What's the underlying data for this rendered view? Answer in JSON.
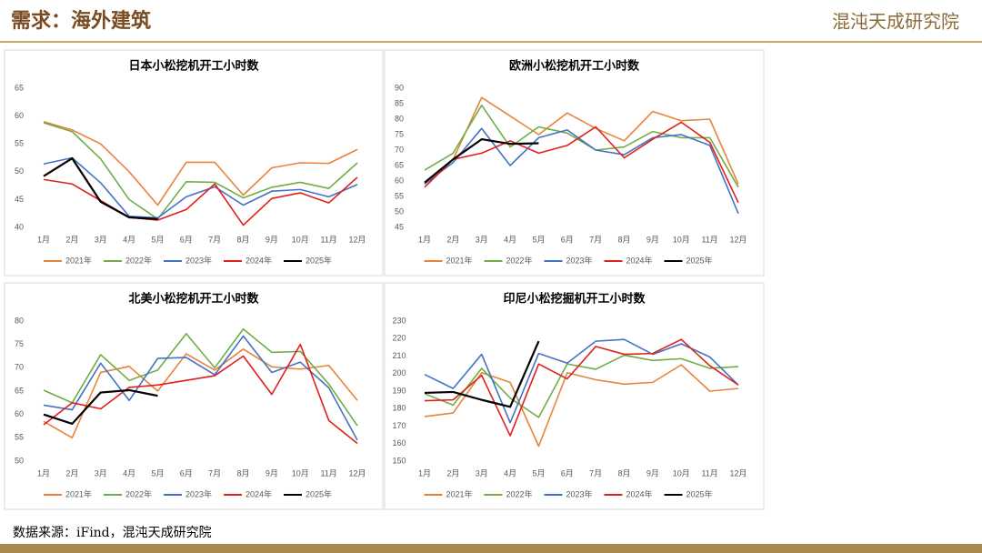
{
  "page_title": "需求：海外建筑",
  "logo": "混沌天成研究院",
  "source": "数据来源：iFind，混沌天成研究院",
  "chart_data": [
    {
      "type": "line",
      "title": "日本小松挖机开工小时数",
      "categories": [
        "1月",
        "2月",
        "3月",
        "4月",
        "5月",
        "6月",
        "7月",
        "8月",
        "9月",
        "10月",
        "11月",
        "12月"
      ],
      "ylim": [
        40,
        65
      ],
      "yticks": [
        40,
        45,
        50,
        55,
        60,
        65
      ],
      "series": [
        {
          "name": "2021年",
          "color": "#e8833a",
          "values": [
            59,
            57.5,
            55,
            50,
            44,
            51.7,
            51.7,
            45.8,
            50.7,
            51.6,
            51.5,
            54
          ]
        },
        {
          "name": "2022年",
          "color": "#70ad47",
          "values": [
            58.8,
            57.2,
            52.3,
            45,
            41.5,
            48.2,
            48.1,
            45.3,
            47.2,
            48.1,
            47,
            51.6
          ]
        },
        {
          "name": "2023年",
          "color": "#4472c4",
          "values": [
            51.4,
            52.5,
            48,
            42,
            41.7,
            45.5,
            47.3,
            44,
            46.5,
            46.8,
            45.5,
            47.7
          ]
        },
        {
          "name": "2024年",
          "color": "#e0201b",
          "values": [
            48.6,
            47.8,
            44.8,
            41.8,
            41.3,
            43.2,
            47.8,
            40.4,
            45.2,
            46.2,
            44.4,
            49
          ]
        },
        {
          "name": "2025年",
          "color": "#000000",
          "values": [
            49.2,
            52.4,
            44.6,
            41.8,
            41.5,
            null,
            null,
            null,
            null,
            null,
            null,
            null
          ]
        }
      ]
    },
    {
      "type": "line",
      "title": "欧洲小松挖机开工小时数",
      "categories": [
        "1月",
        "2月",
        "3月",
        "4月",
        "5月",
        "6月",
        "7月",
        "8月",
        "9月",
        "10月",
        "11月",
        "12月"
      ],
      "ylim": [
        45,
        90
      ],
      "yticks": [
        45,
        50,
        55,
        60,
        65,
        70,
        75,
        80,
        85,
        90
      ],
      "series": [
        {
          "name": "2021年",
          "color": "#e8833a",
          "values": [
            59.5,
            67,
            87,
            81,
            75,
            82,
            77,
            73,
            82.5,
            79.5,
            80,
            59
          ]
        },
        {
          "name": "2022年",
          "color": "#70ad47",
          "values": [
            63.5,
            69,
            84.5,
            71,
            77.5,
            75.5,
            70,
            71,
            76,
            74,
            74,
            58
          ]
        },
        {
          "name": "2023年",
          "color": "#4472c4",
          "values": [
            59,
            66,
            77,
            65,
            74,
            76.5,
            70,
            68.5,
            74,
            75,
            71.5,
            49.5
          ]
        },
        {
          "name": "2024年",
          "color": "#e0201b",
          "values": [
            58,
            67,
            69,
            73,
            69,
            71.5,
            77.5,
            67.5,
            73.5,
            79,
            72.5,
            53
          ]
        },
        {
          "name": "2025年",
          "color": "#000000",
          "values": [
            59.5,
            67,
            73.5,
            72,
            72.2,
            null,
            null,
            null,
            null,
            null,
            null,
            null
          ]
        }
      ]
    },
    {
      "type": "line",
      "title": "北美小松挖机开工小时数",
      "categories": [
        "1月",
        "2月",
        "3月",
        "4月",
        "5月",
        "6月",
        "7月",
        "8月",
        "9月",
        "10月",
        "11月",
        "12月"
      ],
      "ylim": [
        50,
        80
      ],
      "yticks": [
        50,
        55,
        60,
        65,
        70,
        75,
        80
      ],
      "series": [
        {
          "name": "2021年",
          "color": "#e8833a",
          "values": [
            58.5,
            55,
            69,
            70.3,
            65,
            73,
            69.5,
            74,
            70.2,
            69.7,
            70.5,
            63
          ]
        },
        {
          "name": "2022年",
          "color": "#70ad47",
          "values": [
            65.2,
            62.5,
            72.8,
            67.3,
            69.5,
            77.3,
            70,
            78.3,
            73.3,
            73.5,
            66.5,
            57.6
          ]
        },
        {
          "name": "2023年",
          "color": "#4472c4",
          "values": [
            62,
            61,
            71,
            63,
            72,
            72.2,
            68.5,
            76.8,
            69,
            71.2,
            65.7,
            54.5
          ]
        },
        {
          "name": "2024年",
          "color": "#e0201b",
          "values": [
            57.8,
            62.5,
            61.2,
            65.8,
            66.3,
            67.3,
            68.3,
            72.5,
            64.3,
            75,
            58.7,
            53.8
          ]
        },
        {
          "name": "2025年",
          "color": "#000000",
          "values": [
            60,
            58,
            64.7,
            65.2,
            64,
            null,
            null,
            null,
            null,
            null,
            null,
            null
          ]
        }
      ]
    },
    {
      "type": "line",
      "title": "印尼小松挖掘机开工小时数",
      "categories": [
        "1月",
        "2月",
        "3月",
        "4月",
        "5月",
        "6月",
        "7月",
        "8月",
        "9月",
        "10月",
        "11月",
        "12月"
      ],
      "ylim": [
        150,
        230
      ],
      "yticks": [
        150,
        160,
        170,
        180,
        190,
        200,
        210,
        220,
        230
      ],
      "series": [
        {
          "name": "2021年",
          "color": "#e8833a",
          "values": [
            175.5,
            177.5,
            200.5,
            195,
            158.5,
            200.5,
            196.5,
            194,
            195,
            205,
            190,
            191.5
          ]
        },
        {
          "name": "2022年",
          "color": "#70ad47",
          "values": [
            188.5,
            182,
            203,
            186,
            175,
            205.5,
            202.5,
            210.5,
            207.5,
            208.5,
            203,
            204
          ]
        },
        {
          "name": "2023年",
          "color": "#4472c4",
          "values": [
            199.5,
            191.5,
            211,
            172,
            211.5,
            206,
            218.5,
            219.5,
            211,
            217,
            209.5,
            193.5
          ]
        },
        {
          "name": "2024年",
          "color": "#e0201b",
          "values": [
            184.5,
            185,
            199,
            164.5,
            205.5,
            197,
            215.5,
            211,
            211.5,
            219.5,
            204.5,
            193.5
          ]
        },
        {
          "name": "2025年",
          "color": "#000000",
          "values": [
            189,
            189.5,
            185,
            181,
            218.5,
            null,
            null,
            null,
            null,
            null,
            null,
            null
          ]
        }
      ]
    }
  ]
}
